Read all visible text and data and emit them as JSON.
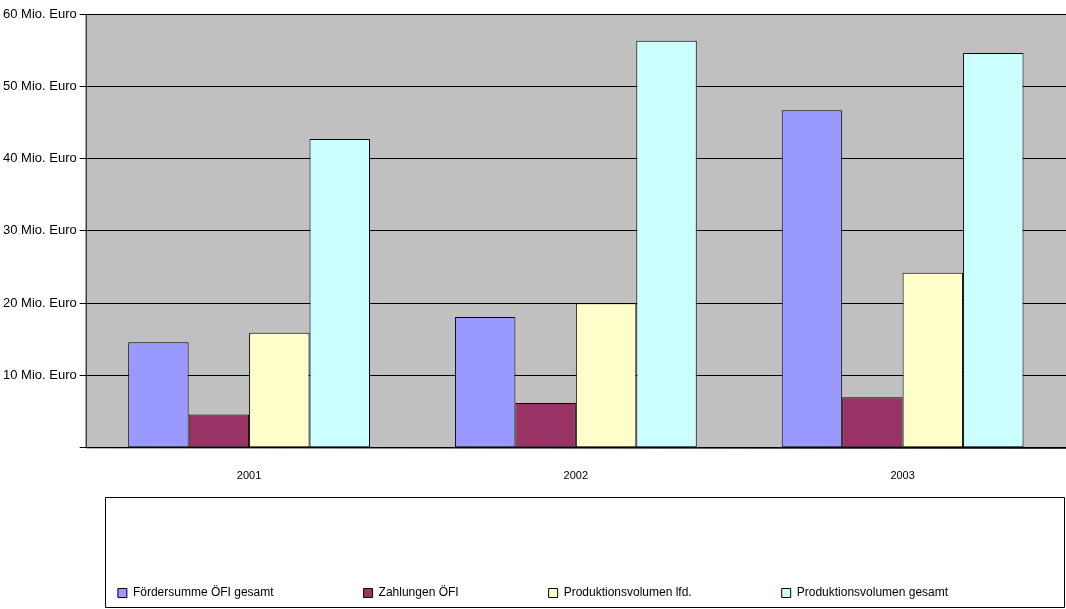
{
  "chart_data": {
    "type": "bar",
    "categories": [
      "2001",
      "2002",
      "2003"
    ],
    "series": [
      {
        "name": "Fördersumme ÖFI gesamt",
        "color": "#9999ff",
        "values": [
          14.6,
          18.1,
          46.7
        ]
      },
      {
        "name": "Zahlungen ÖFI",
        "color": "#993366",
        "values": [
          4.6,
          6.2,
          7.0
        ]
      },
      {
        "name": "Produktionsvolumen lfd.",
        "color": "#ffffcc",
        "values": [
          15.9,
          20.0,
          24.2
        ]
      },
      {
        "name": "Produktionsvolumen gesamt",
        "color": "#ccffff",
        "values": [
          42.7,
          56.3,
          54.6
        ]
      }
    ],
    "ylim": [
      0,
      60
    ],
    "yticks": [
      {
        "value": 0,
        "label": null
      },
      {
        "value": 10,
        "label": "10 Mio. Euro"
      },
      {
        "value": 20,
        "label": "20 Mio. Euro"
      },
      {
        "value": 30,
        "label": "30 Mio. Euro"
      },
      {
        "value": 40,
        "label": "40 Mio. Euro"
      },
      {
        "value": 50,
        "label": "50 Mio. Euro"
      },
      {
        "value": 60,
        "label": "60 Mio. Euro"
      }
    ],
    "grid": "y",
    "legend": "bottom"
  }
}
